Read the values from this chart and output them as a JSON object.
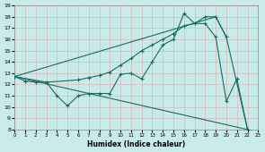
{
  "bg_color": "#c8eae8",
  "line_color": "#1a6b63",
  "grid_color": "#b0d8d4",
  "xlabel": "Humidex (Indice chaleur)",
  "xlim": [
    0,
    23
  ],
  "ylim": [
    8,
    19
  ],
  "xticks": [
    0,
    1,
    2,
    3,
    4,
    5,
    6,
    7,
    8,
    9,
    10,
    11,
    12,
    13,
    14,
    15,
    16,
    17,
    18,
    19,
    20,
    21,
    22,
    23
  ],
  "yticks": [
    8,
    9,
    10,
    11,
    12,
    13,
    14,
    15,
    16,
    17,
    18,
    19
  ],
  "series": [
    {
      "x": [
        0,
        1,
        2,
        3,
        4,
        5,
        6,
        7,
        8,
        9,
        10,
        11,
        12,
        13,
        14,
        15,
        16,
        17,
        18,
        19,
        20,
        21,
        22
      ],
      "y": [
        12.7,
        12.3,
        12.2,
        12.2,
        11.0,
        10.1,
        11.0,
        11.2,
        11.2,
        11.2,
        12.9,
        13.0,
        12.5,
        14.0,
        15.5,
        16.0,
        18.3,
        17.4,
        17.4,
        16.2,
        10.5,
        12.5,
        8.0
      ],
      "markers": true
    },
    {
      "x": [
        0,
        3,
        6,
        7,
        8,
        9,
        10,
        11,
        12,
        13,
        14,
        15,
        16,
        17,
        18,
        19,
        20
      ],
      "y": [
        12.7,
        12.2,
        12.4,
        12.6,
        12.8,
        13.1,
        13.7,
        14.3,
        15.0,
        15.5,
        16.0,
        16.5,
        17.2,
        17.4,
        18.0,
        18.0,
        16.2
      ],
      "markers": true
    },
    {
      "x": [
        0,
        22
      ],
      "y": [
        12.7,
        8.0
      ],
      "markers": false
    },
    {
      "x": [
        0,
        19,
        20,
        22
      ],
      "y": [
        12.7,
        18.0,
        16.2,
        8.0
      ],
      "markers": false
    }
  ]
}
